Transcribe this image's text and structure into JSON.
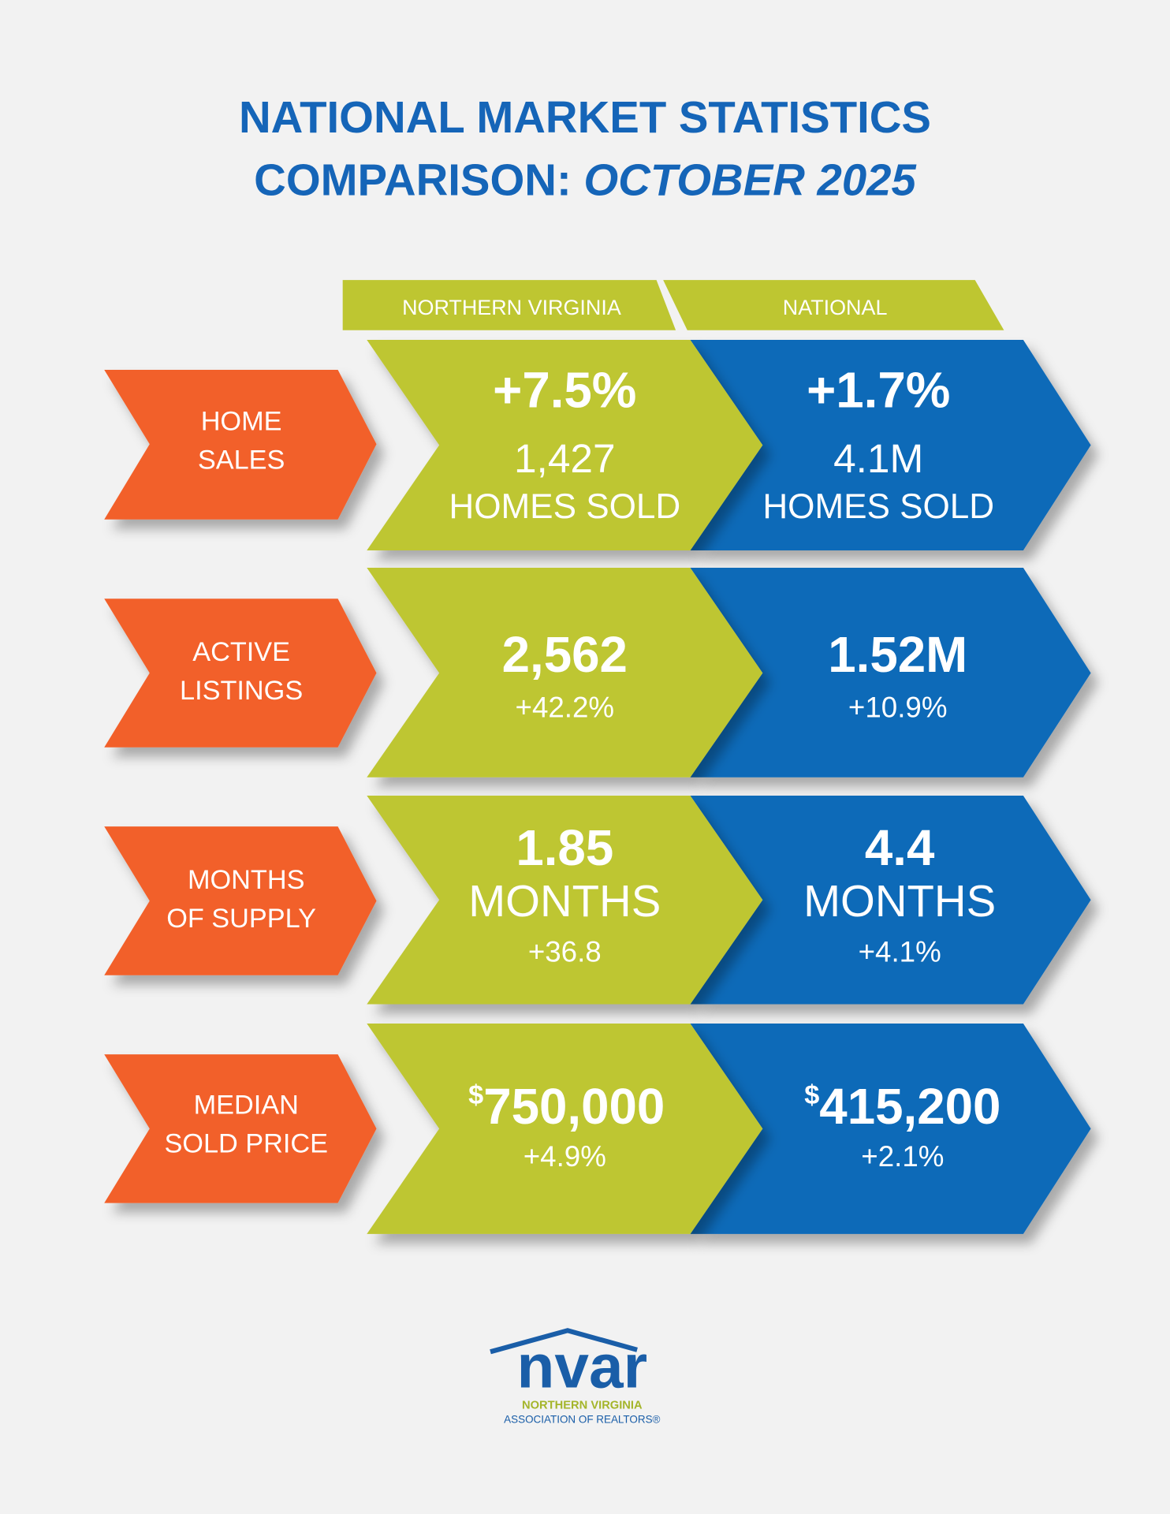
{
  "title": {
    "line1": "NATIONAL MARKET STATISTICS",
    "line2_prefix": "COMPARISON:",
    "line2_emphasis": "OCTOBER 2025"
  },
  "columns": [
    "NORTHERN VIRGINIA",
    "NATIONAL"
  ],
  "rows": [
    {
      "label": [
        "HOME",
        "SALES"
      ],
      "northern_virginia": {
        "lines": [
          "+7.5%",
          "1,427",
          "HOMES SOLD"
        ]
      },
      "national": {
        "lines": [
          "+1.7%",
          "4.1M",
          "HOMES SOLD"
        ]
      }
    },
    {
      "label": [
        "ACTIVE",
        "LISTINGS"
      ],
      "northern_virginia": {
        "lines": [
          "2,562",
          "+42.2%"
        ]
      },
      "national": {
        "lines": [
          "1.52M",
          "+10.9%"
        ]
      }
    },
    {
      "label": [
        "MONTHS",
        "OF SUPPLY"
      ],
      "northern_virginia": {
        "lines": [
          "1.85",
          "MONTHS",
          "+36.8"
        ]
      },
      "national": {
        "lines": [
          "4.4",
          "MONTHS",
          "+4.1%"
        ]
      }
    },
    {
      "label": [
        "MEDIAN",
        "SOLD PRICE"
      ],
      "northern_virginia": {
        "currency": "$",
        "lines": [
          "750,000",
          "+4.9%"
        ]
      },
      "national": {
        "currency": "$",
        "lines": [
          "415,200",
          "+2.1%"
        ]
      }
    }
  ],
  "logo": {
    "mark": "nvar",
    "line1": "NORTHERN VIRGINIA",
    "line2": "ASSOCIATION OF REALTORS®"
  }
}
